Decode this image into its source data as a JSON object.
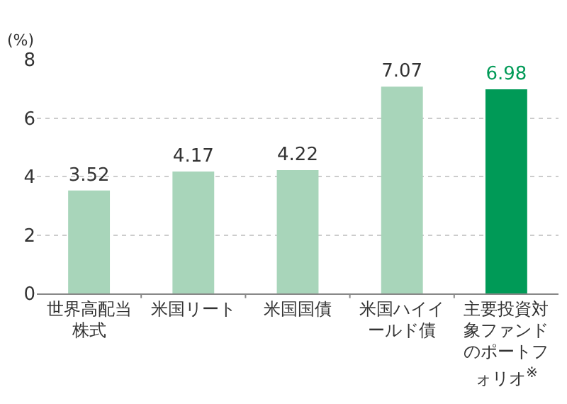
{
  "chart_data": {
    "type": "bar",
    "ylabel": "(%)",
    "categories": [
      "世界高配当株式",
      "米国リート",
      "米国国債",
      "米国ハイイールド債",
      "主要投資対象ファンドのポートフォリオ$^{※}$"
    ],
    "values": [
      3.52,
      4.17,
      4.22,
      7.07,
      6.98
    ],
    "colors": [
      "#a8d5ba",
      "#a8d5ba",
      "#a8d5ba",
      "#a8d5ba",
      "#009a57"
    ],
    "ylim": [
      0,
      8
    ],
    "yticks": [
      0,
      2,
      4,
      6,
      8
    ],
    "grid": "y",
    "data_labels": true
  }
}
